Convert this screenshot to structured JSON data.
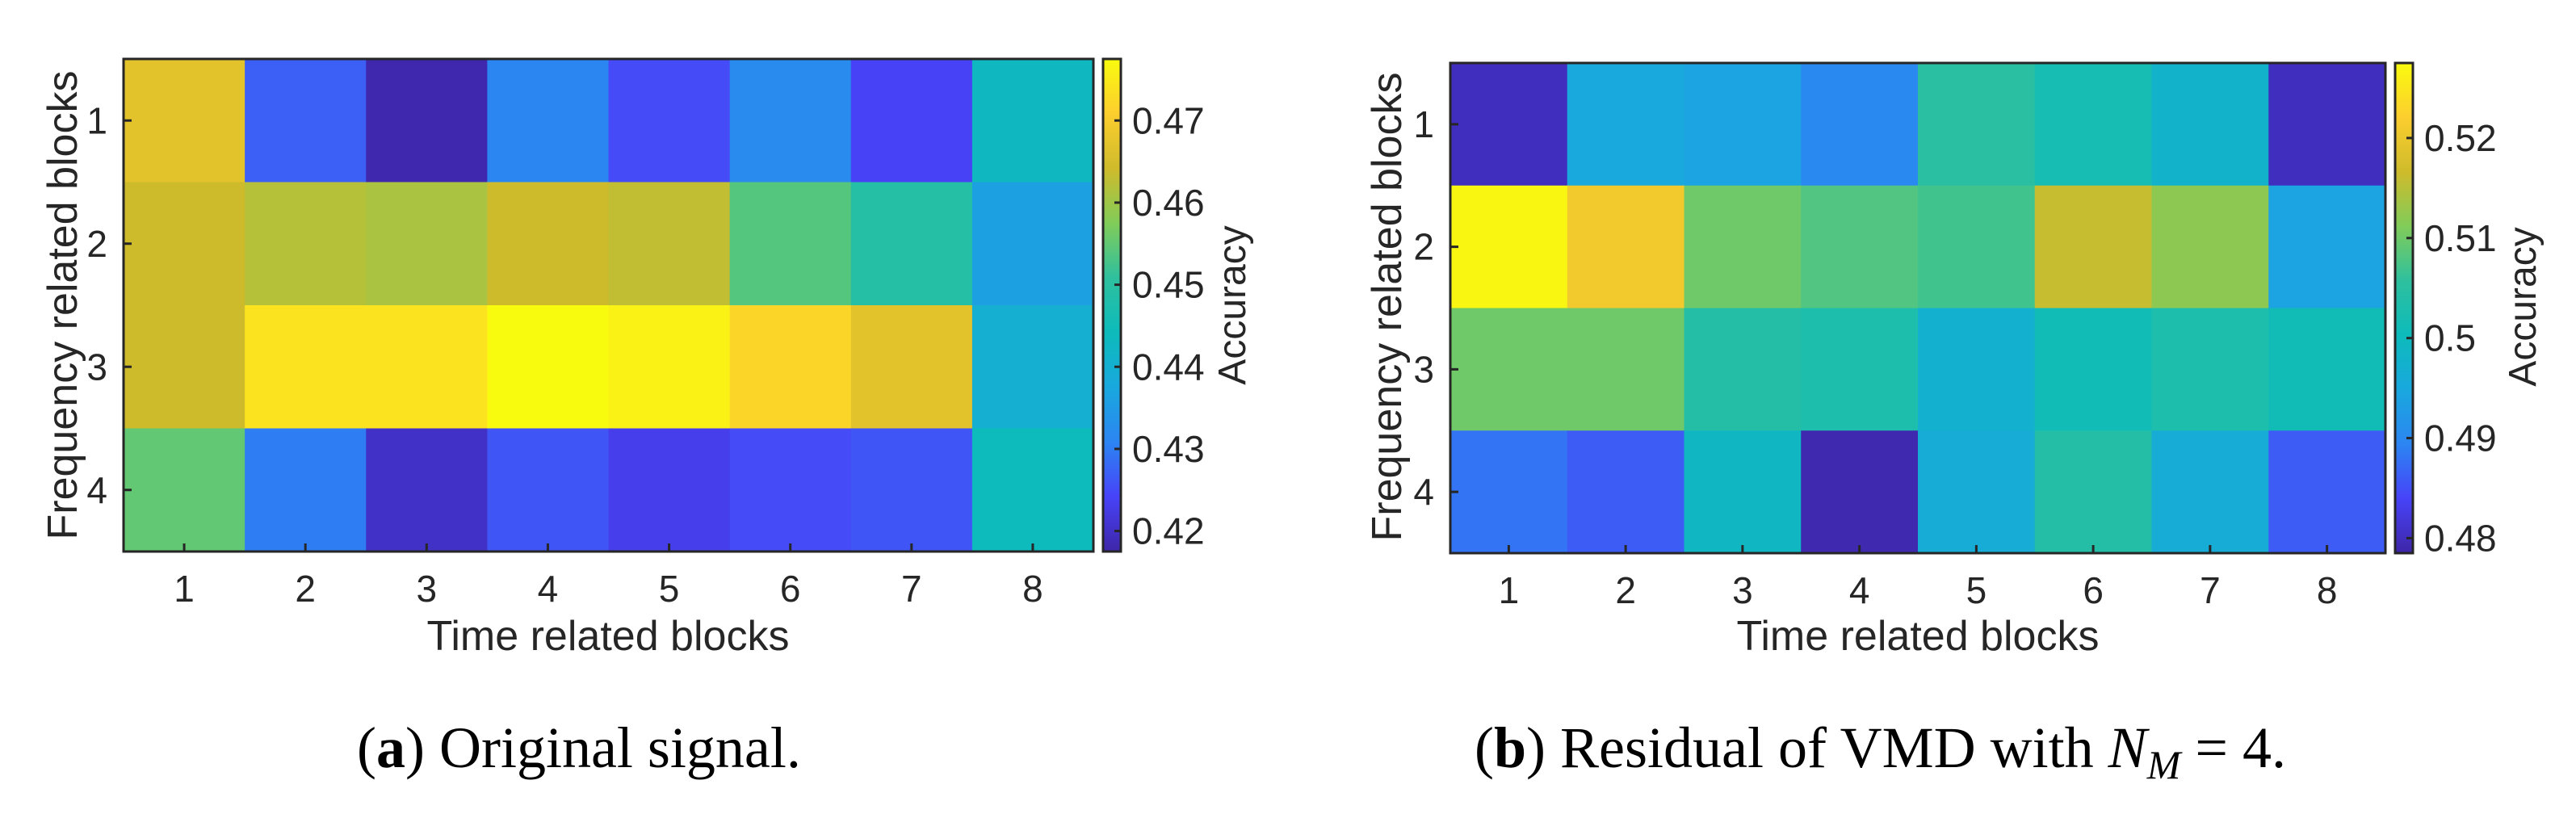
{
  "colormap": {
    "name": "parula",
    "stops": [
      "#3e26a8",
      "#4743f8",
      "#2c85f2",
      "#19a8de",
      "#0dbbbb",
      "#2ec09e",
      "#81cc59",
      "#cfbb2b",
      "#fcce2e",
      "#f9fb0e"
    ]
  },
  "chart_data": [
    {
      "type": "heatmap",
      "panel": "a",
      "title": "",
      "xlabel": "Time related blocks",
      "ylabel": "Frequency related blocks",
      "x_categories": [
        "1",
        "2",
        "3",
        "4",
        "5",
        "6",
        "7",
        "8"
      ],
      "y_categories": [
        "1",
        "2",
        "3",
        "4"
      ],
      "values": [
        [
          0.467,
          0.427,
          0.418,
          0.431,
          0.425,
          0.432,
          0.424,
          0.443
        ],
        [
          0.464,
          0.462,
          0.461,
          0.464,
          0.463,
          0.454,
          0.449,
          0.436
        ],
        [
          0.464,
          0.474,
          0.474,
          0.478,
          0.476,
          0.472,
          0.467,
          0.44
        ],
        [
          0.455,
          0.43,
          0.42,
          0.426,
          0.423,
          0.425,
          0.426,
          0.444
        ]
      ],
      "colorbar": {
        "label": "Accuracy",
        "ticks": [
          "0.47",
          "0.46",
          "0.45",
          "0.44",
          "0.43",
          "0.42"
        ],
        "tick_values": [
          0.47,
          0.46,
          0.45,
          0.44,
          0.43,
          0.42
        ],
        "range": [
          0.4175,
          0.4775
        ]
      },
      "caption_letter": "a",
      "caption_text": " Original signal."
    },
    {
      "type": "heatmap",
      "panel": "b",
      "title": "",
      "xlabel": "Time related blocks",
      "ylabel": "Frequency related blocks",
      "x_categories": [
        "1",
        "2",
        "3",
        "4",
        "5",
        "6",
        "7",
        "8"
      ],
      "y_categories": [
        "1",
        "2",
        "3",
        "4"
      ],
      "values": [
        [
          0.48,
          0.495,
          0.494,
          0.49,
          0.505,
          0.502,
          0.498,
          0.48
        ],
        [
          0.527,
          0.521,
          0.51,
          0.508,
          0.507,
          0.516,
          0.512,
          0.494
        ],
        [
          0.51,
          0.51,
          0.504,
          0.503,
          0.497,
          0.501,
          0.503,
          0.501
        ],
        [
          0.488,
          0.486,
          0.499,
          0.479,
          0.496,
          0.504,
          0.496,
          0.486
        ]
      ],
      "colorbar": {
        "label": "Accuracy",
        "ticks": [
          "0.52",
          "0.51",
          "0.5",
          "0.49",
          "0.48"
        ],
        "tick_values": [
          0.52,
          0.51,
          0.5,
          0.49,
          0.48
        ],
        "range": [
          0.4785,
          0.5275
        ]
      },
      "caption_letter": "b",
      "caption_text": " Residual of VMD with ",
      "caption_math_base": "N",
      "caption_math_sub": "M",
      "caption_math_tail": " = 4."
    }
  ]
}
